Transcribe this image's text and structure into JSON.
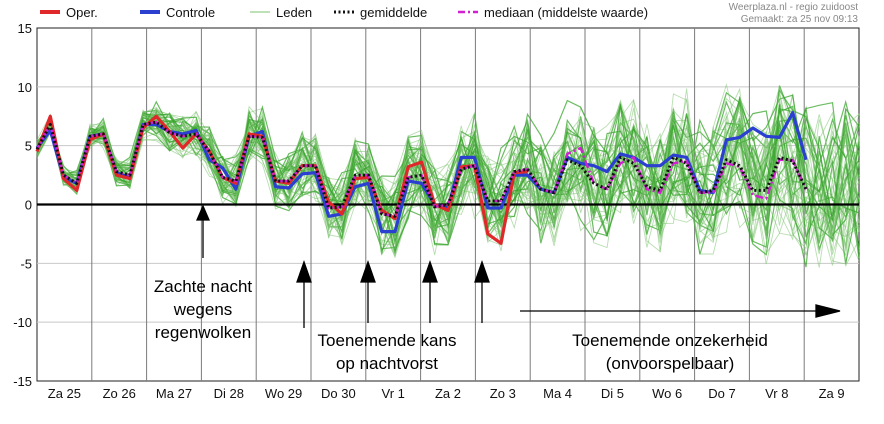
{
  "chart_data": {
    "type": "line",
    "xlabel": "",
    "ylabel": "",
    "ylim": [
      -15,
      15
    ],
    "yticks": [
      15,
      10,
      5,
      0,
      -5,
      -10,
      -15
    ],
    "grid": true,
    "legend_placement": "top",
    "credit": [
      "Weerplaza.nl - regio zuidoost",
      "Gemaakt: za 25 nov 09:13"
    ],
    "x_labels": [
      "Za 25",
      "Zo 26",
      "Ma 27",
      "Di 28",
      "Wo 29",
      "Do 30",
      "Vr 1",
      "Za 2",
      "Zo 3",
      "Ma 4",
      "Di 5",
      "Wo 6",
      "Do 7",
      "Vr 8",
      "Za 9"
    ],
    "x_steps": 62,
    "series": [
      {
        "name": "Oper.",
        "color": "#e0282b",
        "values": [
          4.5,
          7.5,
          2.2,
          1.2,
          5.5,
          6,
          2.5,
          2.2,
          6.5,
          7.5,
          6.2,
          4.8,
          6,
          4.5,
          2.3,
          1.8,
          6,
          5.8,
          2,
          1.8,
          3.3,
          3.3,
          0.2,
          -0.8,
          2.2,
          2.3,
          -0.5,
          -1.2,
          3.2,
          3.6,
          0,
          -0.5,
          3.2,
          3.3,
          -2.5,
          -3.3,
          2.7,
          2.8
        ]
      },
      {
        "name": "Controle",
        "color": "#2b3fd0",
        "values": [
          4.8,
          6.3,
          2.3,
          1.8,
          5.8,
          6,
          2.7,
          2.3,
          6.8,
          6.8,
          6.2,
          6,
          6.3,
          3.8,
          3.1,
          1.3,
          5.8,
          6.2,
          1.5,
          1.4,
          2.6,
          2.7,
          -1,
          -0.8,
          1.5,
          1.8,
          -2.3,
          -2.3,
          2,
          1.8,
          0,
          -0.3,
          4,
          4,
          -0.3,
          -0.3,
          2.5,
          2.5,
          1.3,
          1,
          4,
          3.5,
          3.3,
          2.8,
          4.3,
          4,
          3.3,
          3.3,
          4.2,
          4,
          1.2,
          1,
          5.5,
          5.7,
          6.5,
          5.8,
          5.7,
          7.8,
          3.8
        ]
      },
      {
        "name": "Leden",
        "color": "#3aa52e",
        "values": []
      },
      {
        "name": "gemiddelde",
        "color": "#111111",
        "values": [
          4.7,
          6.8,
          2.5,
          1.8,
          5.8,
          6,
          2.8,
          2.5,
          6.8,
          7,
          6.1,
          5.8,
          6,
          4.5,
          2.3,
          2,
          5.8,
          5.7,
          2,
          2,
          3.3,
          3.3,
          -0.3,
          -0.2,
          2.5,
          2.5,
          -0.8,
          -1,
          2.3,
          2.5,
          -0.2,
          0,
          3,
          3.3,
          0.3,
          0.3,
          2.8,
          3,
          1.3,
          1,
          3.8,
          3.3,
          1.8,
          1.3,
          4,
          3.5,
          1.5,
          1.2,
          4,
          3.5,
          1,
          1.2,
          3.8,
          3.3,
          1.2,
          1.2,
          4,
          3.7,
          1.3
        ]
      },
      {
        "name": "mediaan (middelste waarde)",
        "color": "#d21fd2",
        "values": [
          4.7,
          6.8,
          2.5,
          1.8,
          5.8,
          6,
          2.8,
          2.5,
          6.8,
          7,
          6.1,
          5.8,
          6,
          4.5,
          2.3,
          2,
          5.8,
          5.7,
          2,
          2,
          3.3,
          3.3,
          -0.3,
          -0.2,
          2.5,
          2.5,
          -0.8,
          -1,
          2.3,
          2.5,
          -0.2,
          0,
          3,
          3.3,
          0.3,
          0.3,
          2.8,
          3,
          1.3,
          1,
          4.3,
          4.8,
          1.8,
          1.3,
          3.5,
          4,
          1.3,
          1,
          3.5,
          3.7,
          1,
          1,
          3.5,
          3.2,
          0.8,
          0.5,
          3.8,
          3.8,
          1.3
        ]
      }
    ],
    "annotations": [
      {
        "text": [
          "Zachte nacht",
          "wegens",
          "regenwolken"
        ]
      },
      {
        "text": [
          "Toenemende kans",
          "op nachtvorst"
        ]
      },
      {
        "text": [
          "Toenemende onzekerheid",
          "(onvoorspelbaar)"
        ]
      }
    ]
  }
}
